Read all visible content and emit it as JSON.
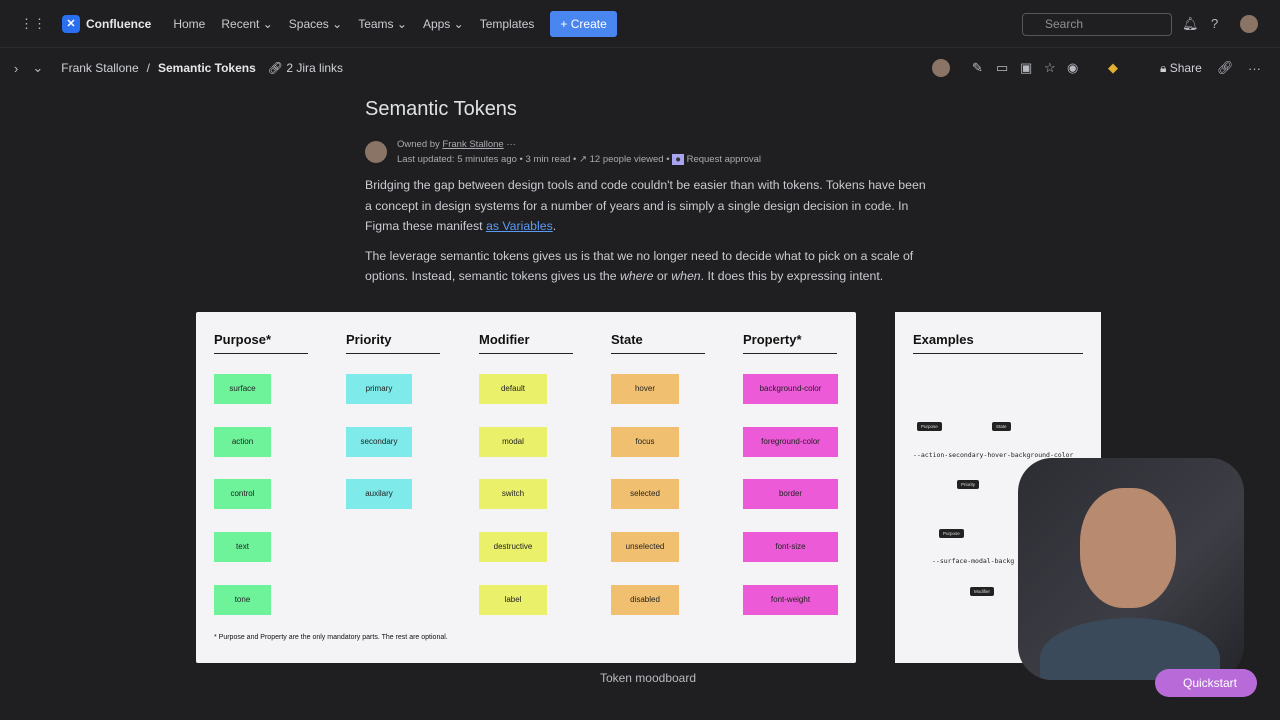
{
  "topnav": {
    "app": "Confluence",
    "items": [
      "Home",
      "Recent",
      "Spaces",
      "Teams",
      "Apps",
      "Templates"
    ],
    "create": "Create",
    "search_placeholder": "Search"
  },
  "breadcrumb": {
    "owner": "Frank Stallone",
    "page": "Semantic Tokens",
    "jira": "2 Jira links",
    "share": "Share"
  },
  "page": {
    "title": "Semantic Tokens",
    "owned_by": "Owned by",
    "owner": "Frank Stallone",
    "last_updated": "Last updated: 5 minutes ago",
    "read_time": "3 min read",
    "viewed": "12 people viewed",
    "approval": "Request approval",
    "p1_a": "Bridging the gap between design tools and code couldn't be easier than with tokens. Tokens have been a concept in design systems for a  number of years and is simply a single design decision in code. In Figma these manifest ",
    "p1_link": "as Variables",
    "p1_b": ".",
    "p2_a": "The leverage semantic tokens gives us is that we no longer need to decide what to pick on a scale of options. Instead, semantic tokens gives us the ",
    "p2_where": "where",
    "p2_or": " or ",
    "p2_when": "when",
    "p2_b": ". It does this by expressing intent."
  },
  "board": {
    "columns": [
      {
        "title": "Purpose*",
        "color": "#6ef29a",
        "items": [
          "surface",
          "action",
          "control",
          "text",
          "tone"
        ]
      },
      {
        "title": "Priority",
        "color": "#7eeaea",
        "items": [
          "primary",
          "secondary",
          "auxilary"
        ]
      },
      {
        "title": "Modifier",
        "color": "#eaf06a",
        "items": [
          "default",
          "modal",
          "switch",
          "destructive",
          "label"
        ]
      },
      {
        "title": "State",
        "color": "#f0c070",
        "items": [
          "hover",
          "focus",
          "selected",
          "unselected",
          "disabled"
        ]
      },
      {
        "title": "Property*",
        "color": "#ec5ad8",
        "items": [
          "background-color",
          "foreground-color",
          "border",
          "font-size",
          "font-weight"
        ]
      }
    ],
    "footnote": "* Purpose and Property are the only mandatory parts. The rest are optional.",
    "caption": "Token moodboard"
  },
  "examples": {
    "title": "Examples",
    "code1": "--action-secondary-hover-background-color",
    "code2": "--surface-modal-backg",
    "tags": [
      "Purpose",
      "State",
      "Priority",
      "Purpose",
      "Modifier"
    ]
  },
  "quickstart": "Quickstart"
}
